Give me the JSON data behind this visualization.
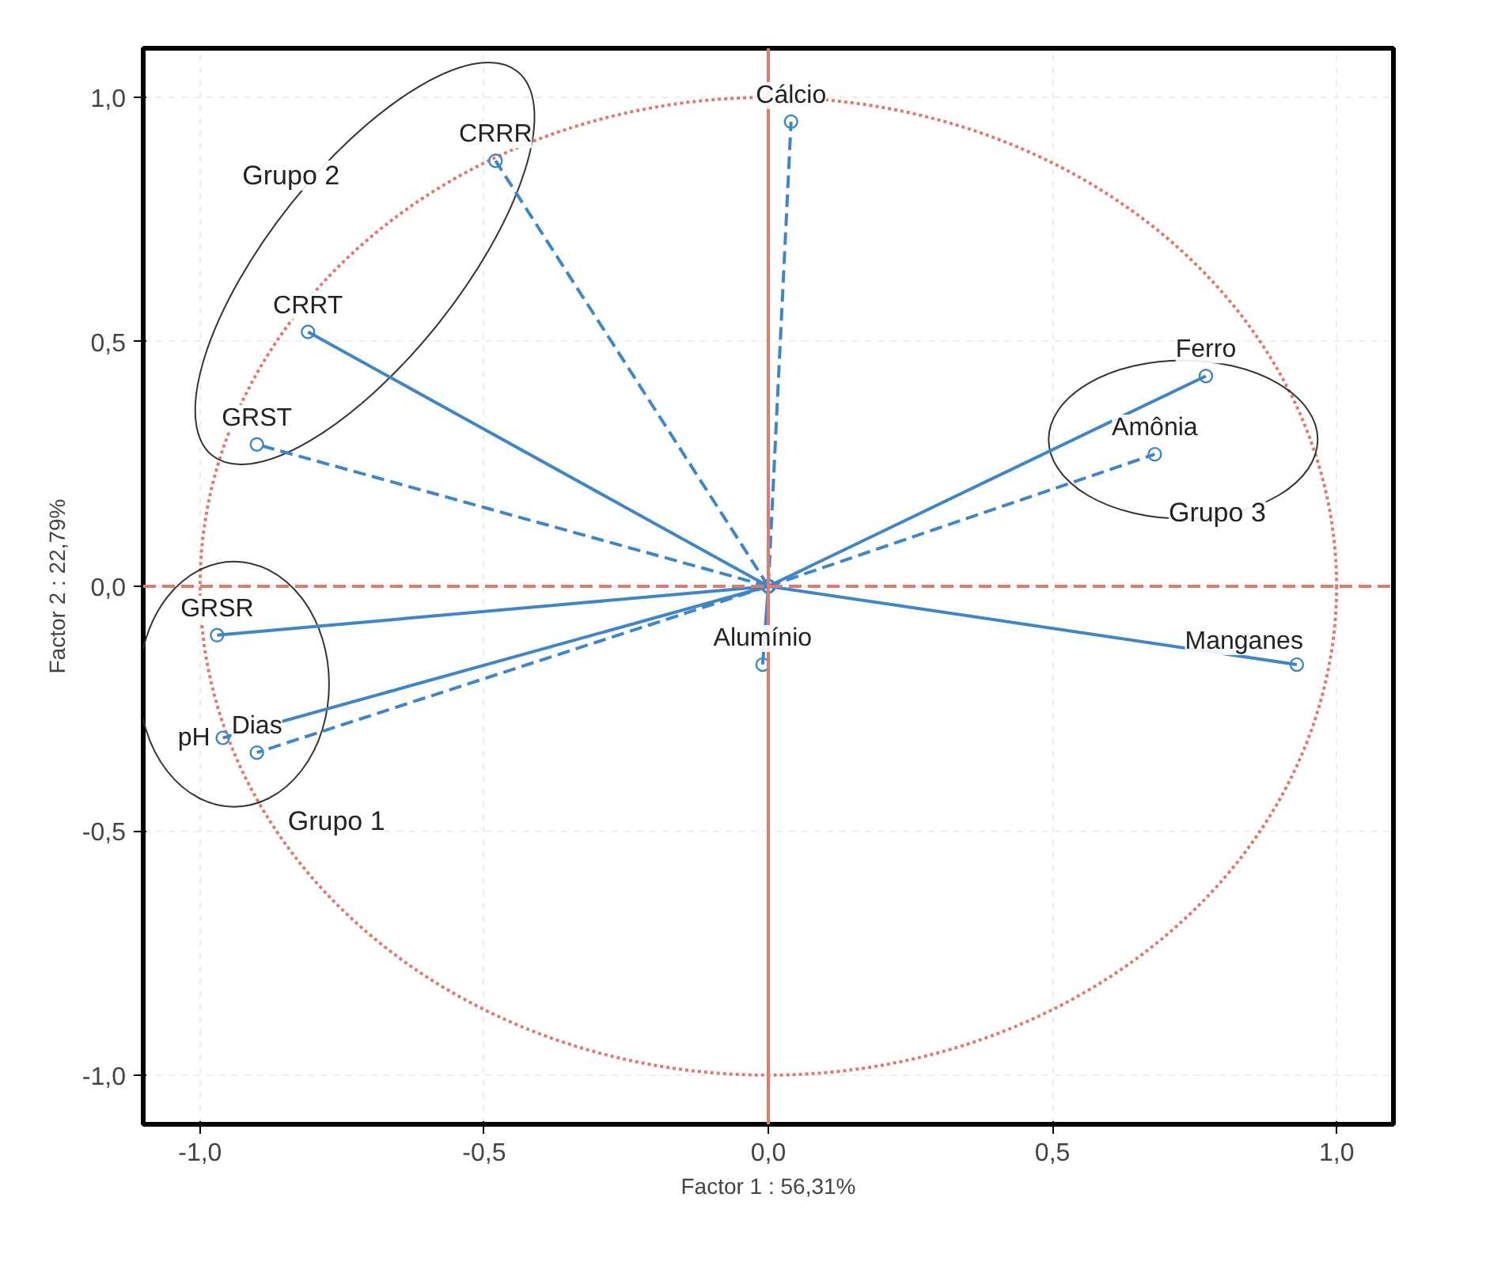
{
  "chart_data": {
    "type": "line",
    "xlabel": "Factor 1 : 56,31%",
    "ylabel": "Factor 2 : 22,79%",
    "xlim": [
      -1.1,
      1.1
    ],
    "ylim": [
      -1.1,
      1.1
    ],
    "xticks": [
      {
        "value": -1,
        "label": "-1,0"
      },
      {
        "value": -0.5,
        "label": "-0,5"
      },
      {
        "value": 0,
        "label": "0,0"
      },
      {
        "value": 0.5,
        "label": "0,5"
      },
      {
        "value": 1,
        "label": "1,0"
      }
    ],
    "yticks": [
      {
        "value": -1,
        "label": "-1,0"
      },
      {
        "value": -0.5,
        "label": "-0,5"
      },
      {
        "value": 0,
        "label": "0,0"
      },
      {
        "value": 0.5,
        "label": "0,5"
      },
      {
        "value": 1,
        "label": "1,0"
      }
    ],
    "grid": true,
    "marker": "circle",
    "series": [
      {
        "name": "Cálcio",
        "color": "#3f86c6",
        "line_style": "dashed",
        "x": [
          0,
          0.04
        ],
        "values": [
          0,
          0.95
        ]
      },
      {
        "name": "CRRR",
        "color": "#3f86c6",
        "line_style": "dashed",
        "x": [
          0,
          -0.48
        ],
        "values": [
          0,
          0.87
        ]
      },
      {
        "name": "CRRT",
        "color": "#3f86c6",
        "line_style": "solid",
        "x": [
          0,
          -0.81
        ],
        "values": [
          0,
          0.52
        ]
      },
      {
        "name": "GRST",
        "color": "#3f86c6",
        "line_style": "dashed",
        "x": [
          0,
          -0.9
        ],
        "values": [
          0,
          0.29
        ]
      },
      {
        "name": "GRSR",
        "color": "#3f86c6",
        "line_style": "solid",
        "x": [
          0,
          -0.97
        ],
        "values": [
          0,
          -0.1
        ]
      },
      {
        "name": "pH",
        "color": "#3f86c6",
        "line_style": "solid",
        "x": [
          0,
          -0.96
        ],
        "values": [
          0,
          -0.31
        ]
      },
      {
        "name": "Dias",
        "color": "#3f86c6",
        "line_style": "dashed",
        "x": [
          0,
          -0.9
        ],
        "values": [
          0,
          -0.34
        ]
      },
      {
        "name": "Alumínio",
        "color": "#3f86c6",
        "line_style": "solid",
        "x": [
          0,
          -0.01
        ],
        "values": [
          0,
          -0.16
        ]
      },
      {
        "name": "Manganes",
        "color": "#3f86c6",
        "line_style": "solid",
        "x": [
          0,
          0.93
        ],
        "values": [
          0,
          -0.16
        ]
      },
      {
        "name": "Ferro",
        "color": "#3f86c6",
        "line_style": "solid",
        "x": [
          0,
          0.77
        ],
        "values": [
          0,
          0.43
        ]
      },
      {
        "name": "Amônia",
        "color": "#3f86c6",
        "line_style": "dashed",
        "x": [
          0,
          0.68
        ],
        "values": [
          0,
          0.27
        ]
      }
    ],
    "ref_lines": [
      {
        "axis": "y",
        "value": 0,
        "color": "#e07a70",
        "line_style": "dashed"
      },
      {
        "axis": "x",
        "value": 0,
        "color": "#e07a70",
        "line_style": "solid"
      }
    ],
    "annotations": [
      "Grupo 2",
      "Grupo 3",
      "Grupo 1"
    ]
  }
}
